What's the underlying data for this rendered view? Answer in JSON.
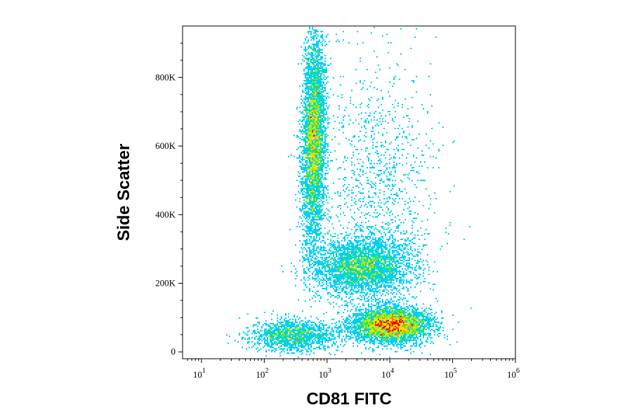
{
  "chart_data": {
    "type": "scatter",
    "style": "density-pseudocolor",
    "xlabel": "CD81 FITC",
    "ylabel": "Side Scatter",
    "x_scale": "log",
    "xlim": [
      5,
      1000000
    ],
    "ylim": [
      -20000,
      950000
    ],
    "x_ticks": [
      {
        "value": 10,
        "base": "10",
        "exp": "1"
      },
      {
        "value": 100,
        "base": "10",
        "exp": "2"
      },
      {
        "value": 1000,
        "base": "10",
        "exp": "3"
      },
      {
        "value": 10000,
        "base": "10",
        "exp": "4"
      },
      {
        "value": 100000,
        "base": "10",
        "exp": "5"
      },
      {
        "value": 1000000,
        "base": "10",
        "exp": "6"
      }
    ],
    "y_ticks": [
      {
        "value": 0,
        "label": "0"
      },
      {
        "value": 200000,
        "label": "200K"
      },
      {
        "value": 400000,
        "label": "400K"
      },
      {
        "value": 600000,
        "label": "600K"
      },
      {
        "value": 800000,
        "label": "800K"
      }
    ],
    "populations": [
      {
        "center_x": 600,
        "center_y": 620000,
        "spread_log_x": 0.09,
        "spread_y": 150000,
        "tilt": 0.22,
        "relative_density": 0.3
      },
      {
        "center_x": 3500,
        "center_y": 250000,
        "spread_log_x": 0.38,
        "spread_y": 42000,
        "tilt": 0,
        "relative_density": 0.22
      },
      {
        "center_x": 10000,
        "center_y": 80000,
        "spread_log_x": 0.3,
        "spread_y": 25000,
        "tilt": 0,
        "relative_density": 0.3
      },
      {
        "center_x": 300,
        "center_y": 50000,
        "spread_log_x": 0.35,
        "spread_y": 22000,
        "tilt": 0,
        "relative_density": 0.1
      },
      {
        "center_x": 6000,
        "center_y": 450000,
        "spread_log_x": 0.45,
        "spread_y": 200000,
        "tilt": 0,
        "relative_density": 0.08
      }
    ],
    "colorscale": [
      "#0000cc",
      "#0060ff",
      "#00d0ff",
      "#00e090",
      "#a0f000",
      "#ffe000",
      "#ff8000",
      "#ff0000",
      "#cc0000"
    ],
    "grid": false
  }
}
